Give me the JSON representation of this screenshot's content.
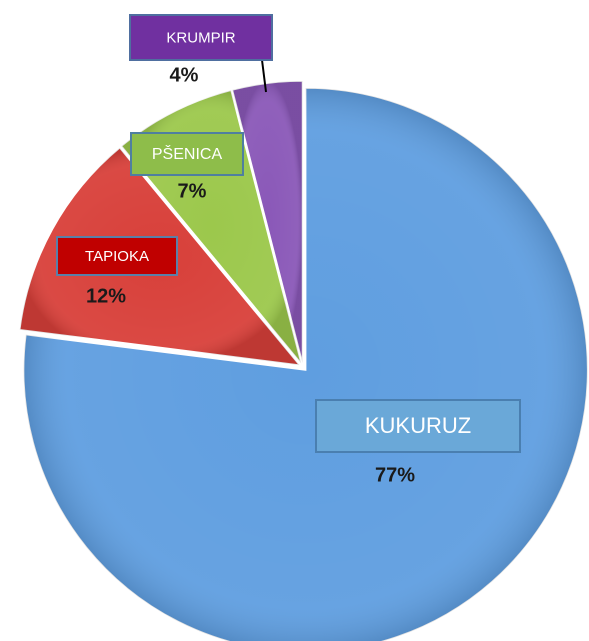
{
  "chart_data": {
    "type": "pie",
    "categories": [
      "KUKURUZ",
      "TAPIOKA",
      "PŠENICA",
      "KRUMPIR"
    ],
    "values": [
      77,
      12,
      7,
      4
    ],
    "value_labels": [
      "77%",
      "12%",
      "7%",
      "4%"
    ],
    "colors": [
      "#5f9ee0",
      "#d8403a",
      "#9cc84c",
      "#8a58b8"
    ]
  }
}
